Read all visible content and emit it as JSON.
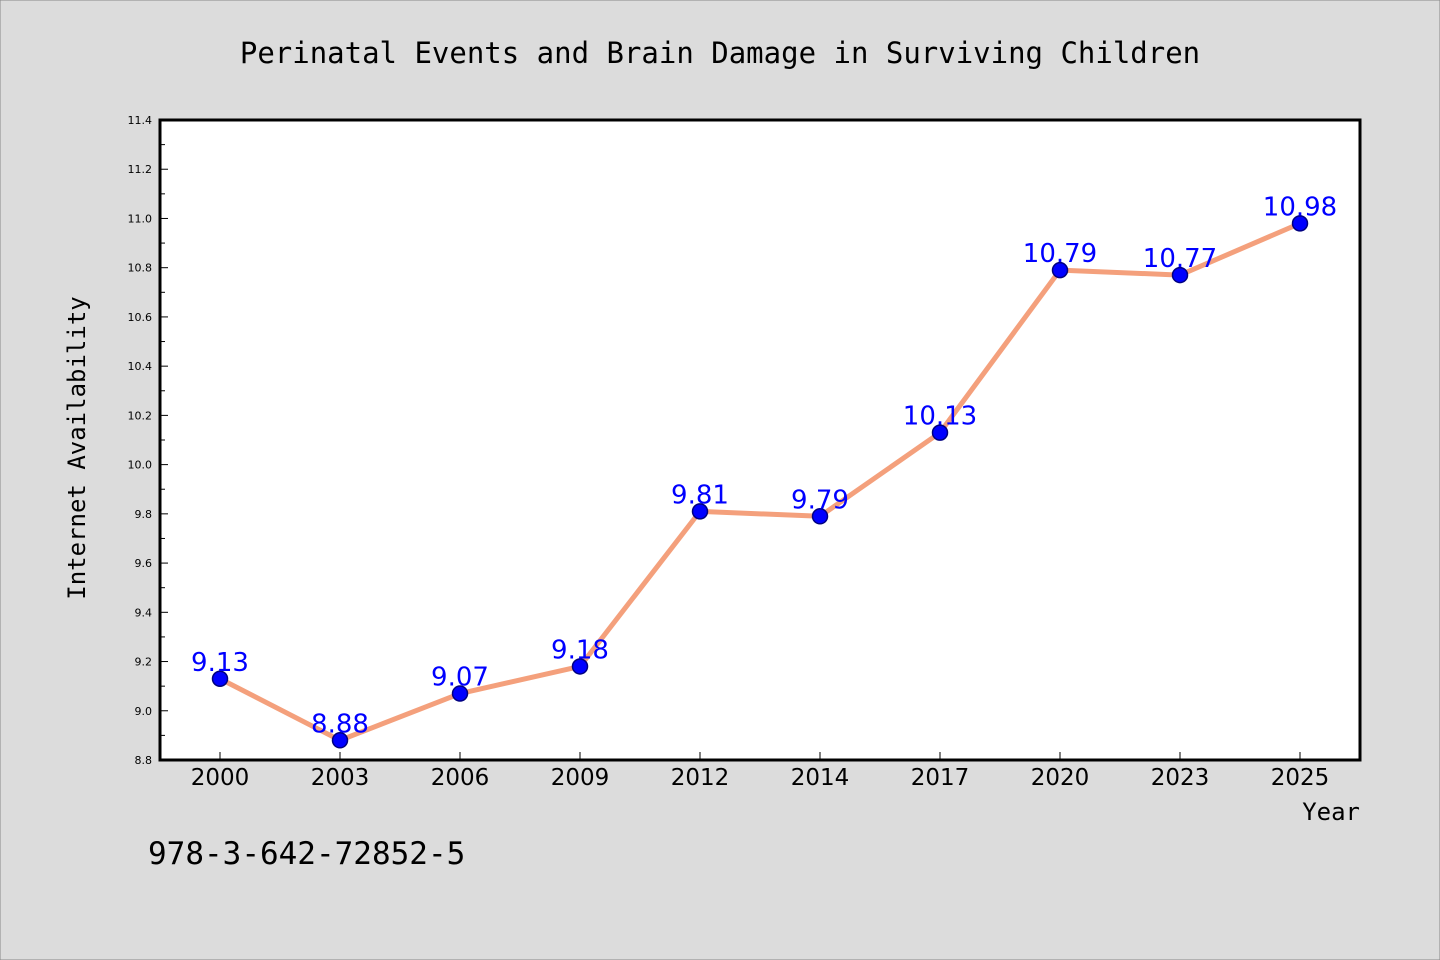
{
  "chart_data": {
    "type": "line",
    "title": "Perinatal Events and Brain Damage in Surviving Children",
    "xlabel": "Year",
    "ylabel": "Internet Availability",
    "categories": [
      "2000",
      "2003",
      "2006",
      "2009",
      "2012",
      "2014",
      "2017",
      "2020",
      "2023",
      "2025"
    ],
    "values": [
      9.13,
      8.88,
      9.07,
      9.18,
      9.81,
      9.79,
      10.13,
      10.79,
      10.77,
      10.98
    ],
    "data_labels": [
      "9.13",
      "8.88",
      "9.07",
      "9.18",
      "9.81",
      "9.79",
      "10.13",
      "10.79",
      "10.77",
      "10.98"
    ],
    "ylim": [
      8.8,
      11.4
    ],
    "yticks": [
      "8.8",
      "9.0",
      "9.2",
      "9.4",
      "9.6",
      "9.8",
      "10.0",
      "10.2",
      "10.4",
      "10.6",
      "10.8",
      "11.0",
      "11.2",
      "11.4"
    ],
    "grid": false,
    "legend": "none",
    "colors": {
      "line": "#f4a07c",
      "marker_fill": "#0000ff",
      "marker_edge": "#000080",
      "data_label": "#0000ff",
      "background": "#dcdcdc",
      "plot_background": "#ffffff"
    }
  },
  "footer_note": "978-3-642-72852-5"
}
